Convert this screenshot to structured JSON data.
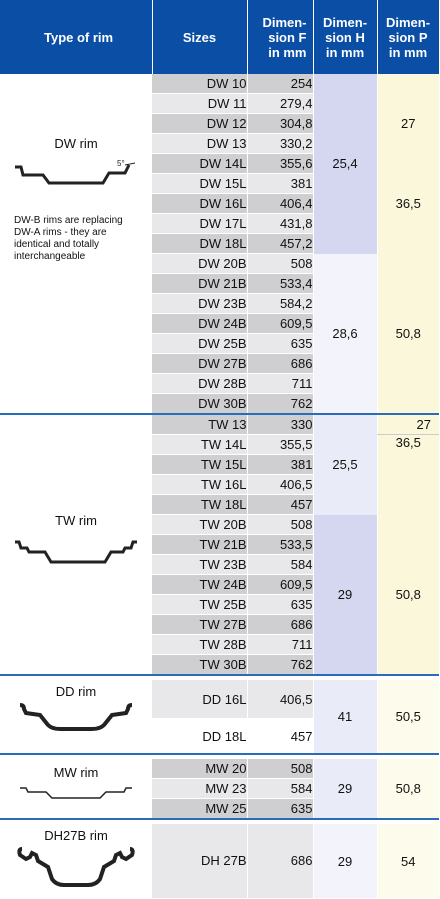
{
  "headers": {
    "type": "Type of rim",
    "sizes": "Sizes",
    "dimF": [
      "Dimen-",
      "sion F",
      "in mm"
    ],
    "dimH": [
      "Dimen-",
      "sion H",
      "in mm"
    ],
    "dimP": [
      "Dimen-",
      "sion P",
      "in mm"
    ]
  },
  "dw": {
    "name": "DW rim",
    "angle": "5°",
    "note": "DW-B rims are replacing DW-A rims - they are identical and totally interchangeable",
    "rows": [
      [
        "DW 10",
        "254"
      ],
      [
        "DW 11",
        "279,4"
      ],
      [
        "DW 12",
        "304,8"
      ],
      [
        "DW 13",
        "330,2"
      ],
      [
        "DW 14L",
        "355,6"
      ],
      [
        "DW 15L",
        "381"
      ],
      [
        "DW 16L",
        "406,4"
      ],
      [
        "DW 17L",
        "431,8"
      ],
      [
        "DW 18L",
        "457,2"
      ],
      [
        "DW 20B",
        "508"
      ],
      [
        "DW 21B",
        "533,4"
      ],
      [
        "DW 23B",
        "584,2"
      ],
      [
        "DW 24B",
        "609,5"
      ],
      [
        "DW 25B",
        "635"
      ],
      [
        "DW 27B",
        "686"
      ],
      [
        "DW 28B",
        "711"
      ],
      [
        "DW 30B",
        "762"
      ]
    ],
    "h": [
      "25,4",
      "28,6"
    ],
    "p": [
      "27",
      "36,5",
      "50,8"
    ]
  },
  "tw": {
    "name": "TW rim",
    "rows": [
      [
        "TW 13",
        "330"
      ],
      [
        "TW 14L",
        "355,5"
      ],
      [
        "TW 15L",
        "381"
      ],
      [
        "TW 16L",
        "406,5"
      ],
      [
        "TW 18L",
        "457"
      ],
      [
        "TW 20B",
        "508"
      ],
      [
        "TW 21B",
        "533,5"
      ],
      [
        "TW 23B",
        "584"
      ],
      [
        "TW 24B",
        "609,5"
      ],
      [
        "TW 25B",
        "635"
      ],
      [
        "TW 27B",
        "686"
      ],
      [
        "TW 28B",
        "711"
      ],
      [
        "TW 30B",
        "762"
      ]
    ],
    "h": [
      "25,5",
      "29"
    ],
    "p": [
      "27",
      "36,5",
      "50,8"
    ]
  },
  "dd": {
    "name": "DD rim",
    "rows": [
      [
        "DD 16L",
        "406,5"
      ],
      [
        "DD 18L",
        "457"
      ]
    ],
    "h": "41",
    "p": "50,5"
  },
  "mw": {
    "name": "MW rim",
    "rows": [
      [
        "MW 20",
        "508"
      ],
      [
        "MW 23",
        "584"
      ],
      [
        "MW 25",
        "635"
      ]
    ],
    "h": "29",
    "p": "50,8"
  },
  "dh": {
    "name": "DH27B rim",
    "rows": [
      [
        "DH 27B",
        "686"
      ]
    ],
    "h": "29",
    "p": "54"
  }
}
